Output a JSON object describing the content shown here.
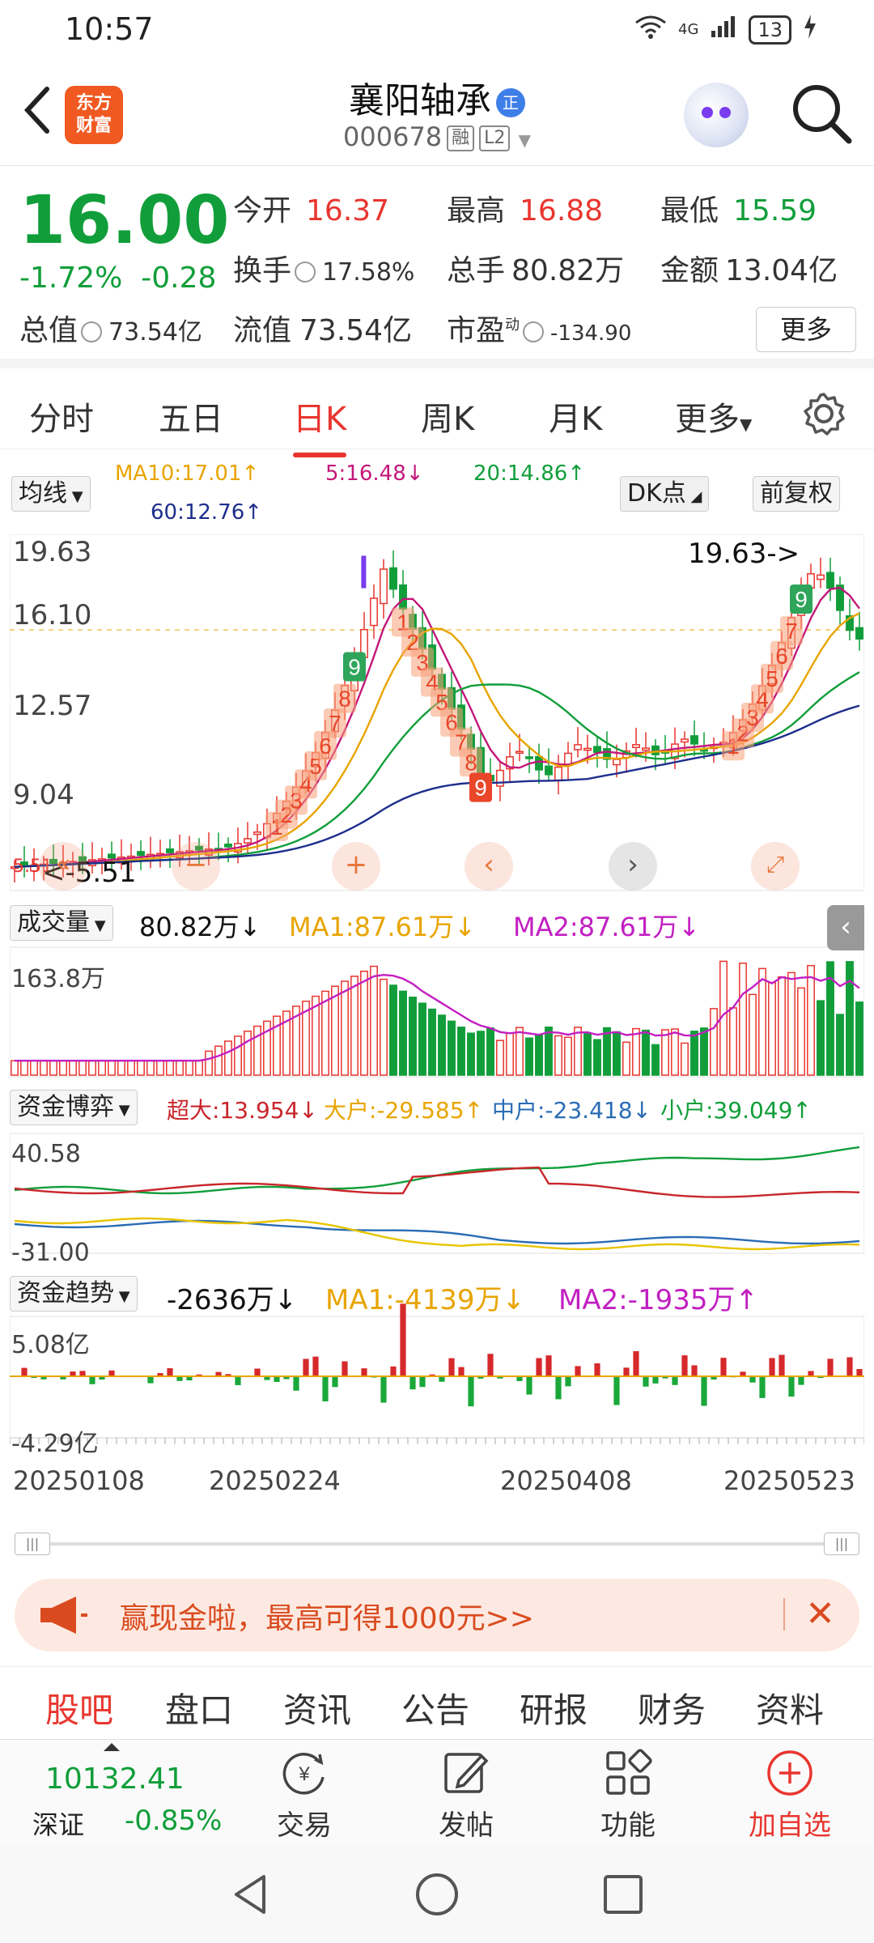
{
  "status": {
    "time": "10:57",
    "network": "4G",
    "battery": "13"
  },
  "header": {
    "logo": [
      "东方",
      "财富"
    ],
    "title": "襄阳轴承",
    "title_badge": "正",
    "code": "000678",
    "tags": [
      "融",
      "L2"
    ]
  },
  "quote": {
    "price": "16.00",
    "pct": "-1.72%",
    "change": "-0.28",
    "open_label": "今开",
    "open": "16.37",
    "high_label": "最高",
    "high": "16.88",
    "low_label": "最低",
    "low": "15.59",
    "turnover_label": "换手",
    "turnover": "17.58%",
    "volume_label": "总手",
    "volume": "80.82万",
    "amount_label": "金额",
    "amount": "13.04亿",
    "total_cap_label": "总值",
    "total_cap": "73.54亿",
    "float_cap_label": "流值",
    "float_cap": "73.54亿",
    "pe_label": "市盈",
    "pe_sup": "动",
    "pe": "-134.90",
    "more": "更多"
  },
  "tabs": [
    "分时",
    "五日",
    "日K",
    "周K",
    "月K",
    "更多"
  ],
  "active_tab": "日K",
  "ma": {
    "selector": "均线",
    "ma10": "MA10:17.01↑",
    "ma5": "5:16.48↓",
    "ma20": "20:14.86↑",
    "ma60": "60:12.76↑",
    "dk": "DK点",
    "fq": "前复权"
  },
  "kchart": {
    "y_labels": [
      "19.63",
      "16.10",
      "12.57",
      "9.04",
      "5.51"
    ],
    "high_label": "19.63->",
    "low_label": "<-5.51"
  },
  "volume": {
    "selector": "成交量",
    "value": "80.82万↓",
    "ma1": "MA1:87.61万↓",
    "ma2": "MA2:87.61万↓",
    "top": "163.8万"
  },
  "fund": {
    "selector": "资金博弈",
    "super": "超大:13.954↓",
    "big": "大户:-29.585↑",
    "mid": "中户:-23.418↓",
    "small": "小户:39.049↑",
    "top": "40.58",
    "bottom": "-31.00"
  },
  "trend": {
    "selector": "资金趋势",
    "value": "-2636万↓",
    "ma1": "MA1:-4139万↓",
    "ma2": "MA2:-1935万↑",
    "top": "5.08亿",
    "bottom": "-4.29亿"
  },
  "dates": [
    "20250108",
    "20250224",
    "20250408",
    "20250523"
  ],
  "banner": {
    "text": "赢现金啦，最高可得1000元>>"
  },
  "bottom_tabs": [
    "股吧",
    "盘口",
    "资讯",
    "公告",
    "研报",
    "财务",
    "资料"
  ],
  "bottom_bar": {
    "index_value": "10132.41",
    "index_name": "深证",
    "index_pct": "-0.85%",
    "trade": "交易",
    "post": "发帖",
    "func": "功能",
    "add": "加自选"
  }
}
